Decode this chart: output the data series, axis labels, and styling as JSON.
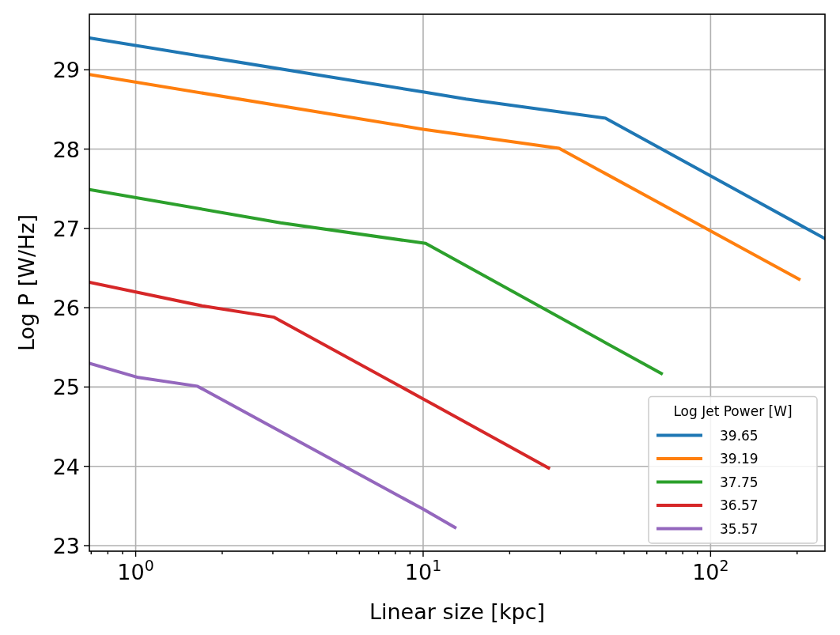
{
  "chart_data": {
    "type": "line",
    "xlabel": "Linear size [kpc]",
    "ylabel": "Log P [W/Hz]",
    "legend_title": "Log Jet Power [W]",
    "legend": "bottom right",
    "grid": true,
    "log": "x",
    "line_style": "solid",
    "marker": "none",
    "xlim": [
      0.69,
      250
    ],
    "ylim": [
      22.93,
      29.7
    ],
    "xticks": [
      {
        "value": 0.7,
        "label": null
      },
      {
        "value": 0.8,
        "label": null
      },
      {
        "value": 0.9,
        "label": null
      },
      {
        "value": 1,
        "label": "10$^{0}$"
      },
      {
        "value": 2,
        "label": null
      },
      {
        "value": 3,
        "label": null
      },
      {
        "value": 4,
        "label": null
      },
      {
        "value": 5,
        "label": null
      },
      {
        "value": 6,
        "label": null
      },
      {
        "value": 7,
        "label": null
      },
      {
        "value": 8,
        "label": null
      },
      {
        "value": 9,
        "label": null
      },
      {
        "value": 10,
        "label": "10$^{1}$"
      },
      {
        "value": 20,
        "label": null
      },
      {
        "value": 30,
        "label": null
      },
      {
        "value": 40,
        "label": null
      },
      {
        "value": 50,
        "label": null
      },
      {
        "value": 60,
        "label": null
      },
      {
        "value": 70,
        "label": null
      },
      {
        "value": 80,
        "label": null
      },
      {
        "value": 90,
        "label": null
      },
      {
        "value": 100,
        "label": "10$^{2}$"
      },
      {
        "value": 200,
        "label": null
      }
    ],
    "yticks": [
      23,
      24,
      25,
      26,
      27,
      28,
      29
    ],
    "series": [
      {
        "name": "39.65",
        "color": "#1f77b4",
        "x": [
          0.69,
          10,
          14.1,
          43.1,
          250
        ],
        "values": [
          29.4,
          28.72,
          28.63,
          28.39,
          26.87
        ]
      },
      {
        "name": "39.19",
        "color": "#ff7f0e",
        "x": [
          0.69,
          10,
          29.7,
          203
        ],
        "values": [
          28.94,
          28.25,
          28.01,
          26.36
        ]
      },
      {
        "name": "37.75",
        "color": "#2ca02c",
        "x": [
          0.69,
          3.19,
          10.2,
          67.4
        ],
        "values": [
          27.49,
          27.07,
          26.81,
          25.17
        ]
      },
      {
        "name": "36.57",
        "color": "#d62728",
        "x": [
          0.69,
          1.72,
          3.03,
          10,
          27.3
        ],
        "values": [
          26.32,
          26.02,
          25.88,
          24.85,
          23.98
        ]
      },
      {
        "name": "35.57",
        "color": "#9467bd",
        "x": [
          0.69,
          1.02,
          1.64,
          10,
          12.9
        ],
        "values": [
          25.3,
          25.12,
          25.01,
          23.46,
          23.23
        ]
      }
    ]
  }
}
